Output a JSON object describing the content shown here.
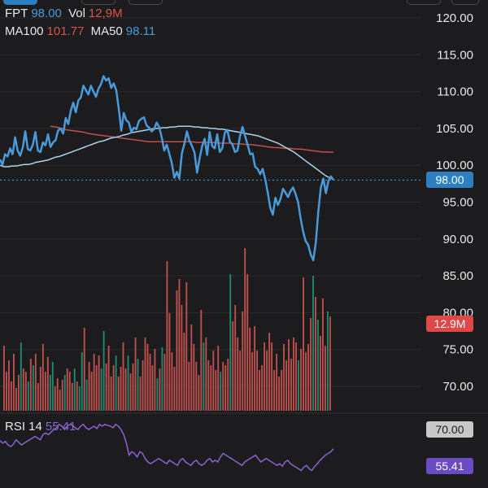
{
  "legend": {
    "symbol": "FPT",
    "price": "98.00",
    "vol_label": "Vol",
    "vol_value": "12,9M",
    "ma100_label": "MA100",
    "ma100_value": "101.77",
    "ma50_label": "MA50",
    "ma50_value": "98.11"
  },
  "rsi_legend": {
    "label": "RSI 14",
    "value": "55.41"
  },
  "badges": {
    "price": "98.00",
    "volume": "12.9M",
    "rsi_level": "70.00",
    "rsi_value": "55.41"
  },
  "colors": {
    "background": "#1c1c1e",
    "price_line": "#4a9ad9",
    "ma100": "#c0504d",
    "ma50": "#a9d4ec",
    "vol_up": "#1f8a70",
    "vol_down": "#c0504d",
    "rsi": "#8a63d2",
    "price_badge": "#2e7fc2",
    "volume_badge": "#e04848",
    "rsi_level_badge": "#c8c8c8",
    "rsi_badge": "#6a4bc4"
  },
  "chart_data": {
    "type": "line",
    "price_axis": {
      "ticks": [
        "120.00",
        "115.00",
        "110.00",
        "105.00",
        "100.00",
        "95.00",
        "90.00",
        "85.00",
        "80.00",
        "75.00",
        "70.00"
      ],
      "ylim": [
        65,
        120
      ]
    },
    "price": [
      100.8,
      100.1,
      101.5,
      101.2,
      102.3,
      101.5,
      103.8,
      102.0,
      101.3,
      102.4,
      104.6,
      102.2,
      102.0,
      102.8,
      104.5,
      102.0,
      101.8,
      103.1,
      102.7,
      104.2,
      102.5,
      103.1,
      103.4,
      104.7,
      105.0,
      104.3,
      106.4,
      105.6,
      107.4,
      108.5,
      107.2,
      108.8,
      109.2,
      110.8,
      110.2,
      109.6,
      110.8,
      110.0,
      109.3,
      110.4,
      111.0,
      112.1,
      111.5,
      111.8,
      110.5,
      111.1,
      110.2,
      107.7,
      104.7,
      107.1,
      106.1,
      105.8,
      104.5,
      105.1,
      104.9,
      106.0,
      106.3,
      106.5,
      105.4,
      105.1,
      104.6,
      104.9,
      105.8,
      105.2,
      103.8,
      102.0,
      102.8,
      101.6,
      100.3,
      98.3,
      99.1,
      98.2,
      101.6,
      102.9,
      104.6,
      103.3,
      102.6,
      101.7,
      99.0,
      100.9,
      102.6,
      103.6,
      101.4,
      104.5,
      102.6,
      102.3,
      104.2,
      101.8,
      102.3,
      104.4,
      104.8,
      103.2,
      102.8,
      101.8,
      102.0,
      104.0,
      105.2,
      104.0,
      102.8,
      101.5,
      101.6,
      99.8,
      99.5,
      98.8,
      99.5,
      98.1,
      96.3,
      94.2,
      93.3,
      95.6,
      94.6,
      95.4,
      96.8,
      96.3,
      95.7,
      96.5,
      97.0,
      96.1,
      95.0,
      92.8,
      91.0,
      89.7,
      89.2,
      87.9,
      87.1,
      89.5,
      93.8,
      97.0,
      98.2,
      96.2,
      97.9,
      98.5,
      98.0
    ],
    "ma50": [
      100.0,
      99.8,
      99.8,
      99.9,
      99.9,
      100.0,
      100.1,
      100.1,
      100.2,
      100.4,
      100.5,
      100.6,
      100.7,
      100.9,
      101.1,
      101.2,
      101.4,
      101.6,
      101.8,
      102.0,
      102.2,
      102.4,
      102.6,
      102.8,
      103.0,
      103.2,
      103.3,
      103.5,
      103.7,
      103.8,
      103.9,
      104.1,
      104.2,
      104.4,
      104.5,
      104.6,
      104.7,
      104.8,
      104.9,
      105.0,
      105.0,
      105.1,
      105.1,
      105.2,
      105.2,
      105.3,
      105.3,
      105.3,
      105.3,
      105.2,
      105.2,
      105.1,
      105.1,
      105.0,
      105.0,
      104.9,
      104.9,
      104.8,
      104.7,
      104.6,
      104.5,
      104.4,
      104.3,
      104.2,
      104.1,
      104.0,
      103.8,
      103.6,
      103.4,
      103.2,
      103.0,
      102.7,
      102.4,
      102.1,
      101.8,
      101.4,
      101.0,
      100.6,
      100.2,
      99.8,
      99.4,
      99.0,
      98.6,
      98.3,
      98.11
    ],
    "ma100": [
      105.3,
      105.2,
      105.0,
      104.8,
      104.7,
      104.6,
      104.5,
      104.3,
      104.2,
      104.1,
      104.0,
      103.9,
      103.8,
      103.7,
      103.6,
      103.5,
      103.4,
      103.3,
      103.2,
      103.2,
      103.2,
      103.2,
      103.2,
      103.2,
      103.2,
      103.2,
      103.2,
      103.1,
      103.1,
      103.1,
      103.1,
      103.0,
      103.0,
      103.0,
      102.9,
      102.9,
      102.8,
      102.8,
      102.7,
      102.6,
      102.5,
      102.4,
      102.4,
      102.3,
      102.3,
      102.2,
      102.2,
      102.1,
      102.0,
      101.9,
      101.8,
      101.8,
      101.77
    ],
    "volume": [
      {
        "v": 0.4,
        "up": false
      },
      {
        "v": 0.24,
        "up": false
      },
      {
        "v": 0.31,
        "up": false
      },
      {
        "v": 0.18,
        "up": false
      },
      {
        "v": 0.35,
        "up": false
      },
      {
        "v": 0.14,
        "up": false
      },
      {
        "v": 0.22,
        "up": false
      },
      {
        "v": 0.42,
        "up": true
      },
      {
        "v": 0.26,
        "up": false
      },
      {
        "v": 0.24,
        "up": false
      },
      {
        "v": 0.18,
        "up": true
      },
      {
        "v": 0.32,
        "up": false
      },
      {
        "v": 0.28,
        "up": true
      },
      {
        "v": 0.35,
        "up": false
      },
      {
        "v": 0.17,
        "up": false
      },
      {
        "v": 0.27,
        "up": false
      },
      {
        "v": 0.41,
        "up": false
      },
      {
        "v": 0.24,
        "up": false
      },
      {
        "v": 0.33,
        "up": false
      },
      {
        "v": 0.22,
        "up": true
      },
      {
        "v": 0.3,
        "up": true
      },
      {
        "v": 0.15,
        "up": false
      },
      {
        "v": 0.2,
        "up": false
      },
      {
        "v": 0.13,
        "up": false
      },
      {
        "v": 0.19,
        "up": false
      },
      {
        "v": 0.22,
        "up": true
      },
      {
        "v": 0.26,
        "up": false
      },
      {
        "v": 0.24,
        "up": false
      },
      {
        "v": 0.17,
        "up": false
      },
      {
        "v": 0.26,
        "up": true
      },
      {
        "v": 0.18,
        "up": false
      },
      {
        "v": 0.15,
        "up": true
      },
      {
        "v": 0.36,
        "up": true
      },
      {
        "v": 0.51,
        "up": false
      },
      {
        "v": 0.19,
        "up": true
      },
      {
        "v": 0.3,
        "up": false
      },
      {
        "v": 0.24,
        "up": false
      },
      {
        "v": 0.35,
        "up": false
      },
      {
        "v": 0.28,
        "up": false
      },
      {
        "v": 0.34,
        "up": false
      },
      {
        "v": 0.26,
        "up": true
      },
      {
        "v": 0.49,
        "up": true
      },
      {
        "v": 0.29,
        "up": false
      },
      {
        "v": 0.4,
        "up": false
      },
      {
        "v": 0.21,
        "up": false
      },
      {
        "v": 0.28,
        "up": false
      },
      {
        "v": 0.34,
        "up": true
      },
      {
        "v": 0.21,
        "up": false
      },
      {
        "v": 0.27,
        "up": false
      },
      {
        "v": 0.42,
        "up": false
      },
      {
        "v": 0.26,
        "up": false
      },
      {
        "v": 0.34,
        "up": true
      },
      {
        "v": 0.23,
        "up": false
      },
      {
        "v": 0.29,
        "up": false
      },
      {
        "v": 0.45,
        "up": false
      },
      {
        "v": 0.32,
        "up": true
      },
      {
        "v": 0.21,
        "up": false
      },
      {
        "v": 0.31,
        "up": false
      },
      {
        "v": 0.45,
        "up": false
      },
      {
        "v": 0.41,
        "up": false
      },
      {
        "v": 0.35,
        "up": false
      },
      {
        "v": 0.28,
        "up": false
      },
      {
        "v": 0.38,
        "up": false
      },
      {
        "v": 0.2,
        "up": true
      },
      {
        "v": 0.26,
        "up": false
      },
      {
        "v": 0.39,
        "up": true
      },
      {
        "v": 0.35,
        "up": false
      },
      {
        "v": 0.92,
        "up": false
      },
      {
        "v": 0.6,
        "up": false
      },
      {
        "v": 0.36,
        "up": false
      },
      {
        "v": 0.27,
        "up": false
      },
      {
        "v": 0.74,
        "up": false
      },
      {
        "v": 0.81,
        "up": false
      },
      {
        "v": 0.65,
        "up": false
      },
      {
        "v": 0.48,
        "up": false
      },
      {
        "v": 0.79,
        "up": false
      },
      {
        "v": 0.3,
        "up": false
      },
      {
        "v": 0.53,
        "up": false
      },
      {
        "v": 0.41,
        "up": false
      },
      {
        "v": 0.3,
        "up": false
      },
      {
        "v": 0.22,
        "up": false
      },
      {
        "v": 0.62,
        "up": false
      },
      {
        "v": 0.42,
        "up": true
      },
      {
        "v": 0.45,
        "up": false
      },
      {
        "v": 0.31,
        "up": false
      },
      {
        "v": 0.28,
        "up": false
      },
      {
        "v": 0.37,
        "up": false
      },
      {
        "v": 0.25,
        "up": false
      },
      {
        "v": 0.4,
        "up": false
      },
      {
        "v": 0.24,
        "up": true
      },
      {
        "v": 0.3,
        "up": false
      },
      {
        "v": 0.28,
        "up": false
      },
      {
        "v": 0.32,
        "up": false
      },
      {
        "v": 0.84,
        "up": true
      },
      {
        "v": 0.55,
        "up": false
      },
      {
        "v": 0.65,
        "up": false
      },
      {
        "v": 0.45,
        "up": false
      },
      {
        "v": 0.37,
        "up": false
      },
      {
        "v": 0.61,
        "up": false
      },
      {
        "v": 1.0,
        "up": false
      },
      {
        "v": 0.84,
        "up": false
      },
      {
        "v": 0.51,
        "up": false
      },
      {
        "v": 0.36,
        "up": false
      },
      {
        "v": 0.52,
        "up": false
      },
      {
        "v": 0.37,
        "up": false
      },
      {
        "v": 0.25,
        "up": false
      },
      {
        "v": 0.28,
        "up": false
      },
      {
        "v": 0.42,
        "up": false
      },
      {
        "v": 0.37,
        "up": false
      },
      {
        "v": 0.48,
        "up": false
      },
      {
        "v": 0.42,
        "up": false
      },
      {
        "v": 0.25,
        "up": false
      },
      {
        "v": 0.35,
        "up": false
      },
      {
        "v": 0.21,
        "up": false
      },
      {
        "v": 0.25,
        "up": false
      },
      {
        "v": 0.41,
        "up": false
      },
      {
        "v": 0.31,
        "up": false
      },
      {
        "v": 0.44,
        "up": false
      },
      {
        "v": 0.32,
        "up": false
      },
      {
        "v": 0.45,
        "up": false
      },
      {
        "v": 0.42,
        "up": false
      },
      {
        "v": 0.31,
        "up": true
      },
      {
        "v": 0.38,
        "up": false
      },
      {
        "v": 0.82,
        "up": false
      },
      {
        "v": 0.36,
        "up": false
      },
      {
        "v": 0.41,
        "up": false
      },
      {
        "v": 0.57,
        "up": false
      },
      {
        "v": 0.83,
        "up": true
      },
      {
        "v": 0.7,
        "up": false
      },
      {
        "v": 0.56,
        "up": true
      },
      {
        "v": 0.46,
        "up": false
      },
      {
        "v": 0.69,
        "up": false
      },
      {
        "v": 0.4,
        "up": false
      },
      {
        "v": 0.61,
        "up": true
      },
      {
        "v": 0.58,
        "up": false
      }
    ],
    "rsi": [
      65,
      62,
      64,
      60,
      58,
      61,
      66,
      63,
      60,
      62,
      64,
      66,
      68,
      70,
      68,
      66,
      72,
      74,
      72,
      75,
      78,
      80,
      84,
      82,
      78,
      82,
      84,
      83,
      80,
      78,
      82,
      84,
      80,
      78,
      80,
      82,
      79,
      84,
      82,
      84,
      83,
      82,
      80,
      84,
      82,
      78,
      72,
      62,
      48,
      52,
      50,
      46,
      52,
      50,
      44,
      40,
      38,
      40,
      42,
      44,
      42,
      40,
      38,
      42,
      40,
      38,
      36,
      42,
      44,
      40,
      38,
      36,
      40,
      42,
      38,
      36,
      38,
      42,
      44,
      40,
      42,
      40,
      46,
      50,
      48,
      46,
      44,
      42,
      40,
      38,
      36,
      40,
      42,
      44,
      46,
      48,
      44,
      40,
      42,
      44,
      42,
      40,
      38,
      36,
      38,
      35,
      40,
      42,
      38,
      36,
      34,
      32,
      30,
      34,
      36,
      32,
      30,
      35,
      38,
      42,
      45,
      48,
      50,
      52,
      55.41
    ]
  }
}
